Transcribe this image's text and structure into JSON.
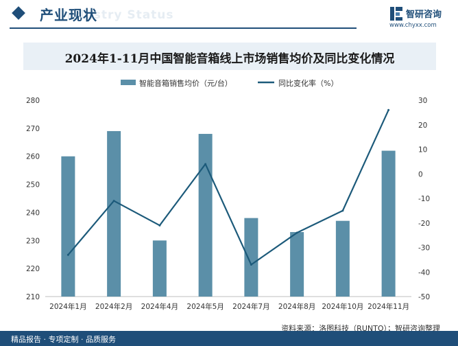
{
  "header": {
    "title": "产业现状",
    "subtitle_ghost": "Industry Status"
  },
  "brand": {
    "name": "智研咨询",
    "url": "www.chyxx.com"
  },
  "footer": {
    "left_text": "精品报告 · 专项定制 · 品质服务",
    "source_text": "资料来源：洛图科技（RUNTO）；智研咨询整理"
  },
  "colors": {
    "bar": "#5b8fa8",
    "line": "#1c5a7a",
    "brand": "#1f4e79"
  },
  "chart_data": {
    "type": "bar",
    "title": "2024年1-11月中国智能音箱线上市场销售均价及同比变化情况",
    "categories": [
      "2024年1月",
      "2024年2月",
      "2024年4月",
      "2024年5月",
      "2024年7月",
      "2024年8月",
      "2024年10月",
      "2024年11月"
    ],
    "series": [
      {
        "name": "智能音箱销售均价（元/台）",
        "type": "bar",
        "axis": "left",
        "values": [
          260,
          269,
          230,
          268,
          238,
          233,
          237,
          262
        ]
      },
      {
        "name": "同比变化率（%）",
        "type": "line",
        "axis": "right",
        "values": [
          -33,
          -11,
          -21,
          4,
          -37,
          -24,
          -15,
          26
        ]
      }
    ],
    "y_left": {
      "min": 210,
      "max": 280,
      "ticks": [
        210,
        220,
        230,
        240,
        250,
        260,
        270,
        280
      ]
    },
    "y_right": {
      "min": -50,
      "max": 30,
      "ticks": [
        -50,
        -40,
        -30,
        -20,
        -10,
        0,
        10,
        20,
        30
      ]
    },
    "legend_position": "top-center",
    "grid": false
  }
}
